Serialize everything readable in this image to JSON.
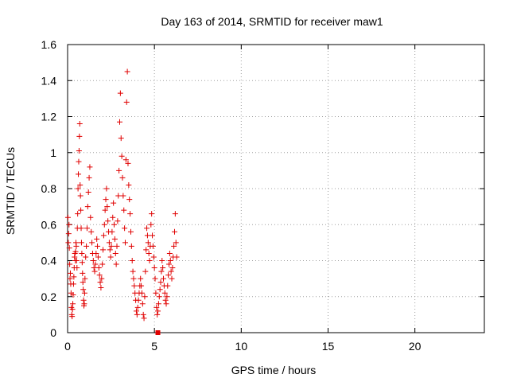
{
  "chart_data": {
    "type": "scatter",
    "title": "Day 163 of 2014, SRMTID for receiver maw1",
    "xlabel": "GPS time / hours",
    "ylabel": "SRMTID / TECUs",
    "xlim": [
      0,
      24
    ],
    "ylim": [
      0,
      1.6
    ],
    "xticks": [
      0,
      5,
      10,
      15,
      20
    ],
    "yticks": [
      0,
      0.2,
      0.4,
      0.6,
      0.8,
      1.0,
      1.2,
      1.4,
      1.6
    ],
    "xtick_labels": [
      "0",
      "5",
      "10",
      "15",
      "20"
    ],
    "ytick_labels": [
      "0",
      "0.2",
      "0.4",
      "0.6",
      "0.8",
      "1",
      "1.2",
      "1.4",
      "1.6"
    ],
    "grid": true,
    "marker_color": "#e00000",
    "special_marker": {
      "x": 5.2,
      "y": 0.0,
      "shape": "square"
    },
    "series": [
      {
        "name": "SRMTID",
        "marker": "+",
        "points": [
          [
            0.02,
            0.64
          ],
          [
            0.04,
            0.5
          ],
          [
            0.06,
            0.55
          ],
          [
            0.08,
            0.6
          ],
          [
            0.1,
            0.47
          ],
          [
            0.12,
            0.38
          ],
          [
            0.14,
            0.3
          ],
          [
            0.16,
            0.33
          ],
          [
            0.18,
            0.27
          ],
          [
            0.2,
            0.22
          ],
          [
            0.22,
            0.14
          ],
          [
            0.24,
            0.1
          ],
          [
            0.26,
            0.09
          ],
          [
            0.28,
            0.13
          ],
          [
            0.3,
            0.16
          ],
          [
            0.32,
            0.21
          ],
          [
            0.34,
            0.27
          ],
          [
            0.36,
            0.31
          ],
          [
            0.38,
            0.36
          ],
          [
            0.4,
            0.42
          ],
          [
            0.42,
            0.44
          ],
          [
            0.44,
            0.4
          ],
          [
            0.46,
            0.45
          ],
          [
            0.48,
            0.5
          ],
          [
            0.5,
            0.48
          ],
          [
            0.52,
            0.4
          ],
          [
            0.54,
            0.36
          ],
          [
            0.56,
            0.58
          ],
          [
            0.58,
            0.66
          ],
          [
            0.6,
            0.8
          ],
          [
            0.62,
            0.88
          ],
          [
            0.64,
            0.95
          ],
          [
            0.66,
            1.01
          ],
          [
            0.68,
            1.09
          ],
          [
            0.7,
            1.16
          ],
          [
            0.72,
            0.82
          ],
          [
            0.74,
            0.76
          ],
          [
            0.76,
            0.68
          ],
          [
            0.78,
            0.58
          ],
          [
            0.8,
            0.5
          ],
          [
            0.82,
            0.44
          ],
          [
            0.84,
            0.39
          ],
          [
            0.86,
            0.33
          ],
          [
            0.88,
            0.28
          ],
          [
            0.9,
            0.24
          ],
          [
            0.92,
            0.18
          ],
          [
            0.94,
            0.15
          ],
          [
            0.96,
            0.16
          ],
          [
            0.98,
            0.22
          ],
          [
            1.0,
            0.3
          ],
          [
            1.04,
            0.42
          ],
          [
            1.08,
            0.48
          ],
          [
            1.12,
            0.58
          ],
          [
            1.16,
            0.7
          ],
          [
            1.2,
            0.78
          ],
          [
            1.24,
            0.86
          ],
          [
            1.28,
            0.92
          ],
          [
            1.32,
            0.64
          ],
          [
            1.36,
            0.56
          ],
          [
            1.4,
            0.5
          ],
          [
            1.44,
            0.44
          ],
          [
            1.48,
            0.4
          ],
          [
            1.52,
            0.36
          ],
          [
            1.56,
            0.34
          ],
          [
            1.6,
            0.38
          ],
          [
            1.64,
            0.44
          ],
          [
            1.68,
            0.52
          ],
          [
            1.72,
            0.48
          ],
          [
            1.76,
            0.42
          ],
          [
            1.8,
            0.36
          ],
          [
            1.84,
            0.32
          ],
          [
            1.88,
            0.28
          ],
          [
            1.92,
            0.25
          ],
          [
            1.96,
            0.3
          ],
          [
            2.0,
            0.38
          ],
          [
            2.04,
            0.46
          ],
          [
            2.08,
            0.54
          ],
          [
            2.12,
            0.6
          ],
          [
            2.16,
            0.68
          ],
          [
            2.2,
            0.74
          ],
          [
            2.24,
            0.8
          ],
          [
            2.28,
            0.7
          ],
          [
            2.32,
            0.62
          ],
          [
            2.36,
            0.56
          ],
          [
            2.4,
            0.5
          ],
          [
            2.44,
            0.46
          ],
          [
            2.48,
            0.42
          ],
          [
            2.52,
            0.48
          ],
          [
            2.56,
            0.56
          ],
          [
            2.6,
            0.64
          ],
          [
            2.64,
            0.72
          ],
          [
            2.68,
            0.6
          ],
          [
            2.72,
            0.52
          ],
          [
            2.76,
            0.44
          ],
          [
            2.8,
            0.38
          ],
          [
            2.84,
            0.48
          ],
          [
            2.88,
            0.62
          ],
          [
            2.92,
            0.76
          ],
          [
            2.96,
            0.9
          ],
          [
            3.0,
            1.17
          ],
          [
            3.04,
            1.33
          ],
          [
            3.08,
            1.08
          ],
          [
            3.12,
            0.98
          ],
          [
            3.16,
            0.86
          ],
          [
            3.2,
            0.76
          ],
          [
            3.24,
            0.68
          ],
          [
            3.28,
            0.58
          ],
          [
            3.32,
            0.5
          ],
          [
            3.36,
            0.96
          ],
          [
            3.4,
            1.28
          ],
          [
            3.44,
            1.45
          ],
          [
            3.48,
            0.94
          ],
          [
            3.52,
            0.82
          ],
          [
            3.56,
            0.74
          ],
          [
            3.6,
            0.66
          ],
          [
            3.64,
            0.56
          ],
          [
            3.68,
            0.48
          ],
          [
            3.72,
            0.4
          ],
          [
            3.76,
            0.34
          ],
          [
            3.8,
            0.3
          ],
          [
            3.84,
            0.26
          ],
          [
            3.88,
            0.22
          ],
          [
            3.92,
            0.18
          ],
          [
            3.96,
            0.12
          ],
          [
            4.0,
            0.1
          ],
          [
            4.04,
            0.14
          ],
          [
            4.08,
            0.18
          ],
          [
            4.12,
            0.22
          ],
          [
            4.16,
            0.26
          ],
          [
            4.2,
            0.3
          ],
          [
            4.24,
            0.26
          ],
          [
            4.28,
            0.22
          ],
          [
            4.32,
            0.16
          ],
          [
            4.36,
            0.1
          ],
          [
            4.4,
            0.08
          ],
          [
            4.44,
            0.2
          ],
          [
            4.48,
            0.34
          ],
          [
            4.52,
            0.46
          ],
          [
            4.56,
            0.58
          ],
          [
            4.6,
            0.54
          ],
          [
            4.64,
            0.5
          ],
          [
            4.68,
            0.44
          ],
          [
            4.72,
            0.4
          ],
          [
            4.76,
            0.48
          ],
          [
            4.8,
            0.6
          ],
          [
            4.84,
            0.66
          ],
          [
            4.88,
            0.54
          ],
          [
            4.92,
            0.48
          ],
          [
            4.96,
            0.42
          ],
          [
            5.0,
            0.36
          ],
          [
            5.04,
            0.3
          ],
          [
            5.08,
            0.22
          ],
          [
            5.12,
            0.14
          ],
          [
            5.16,
            0.1
          ],
          [
            5.2,
            0.12
          ],
          [
            5.24,
            0.16
          ],
          [
            5.28,
            0.2
          ],
          [
            5.32,
            0.24
          ],
          [
            5.36,
            0.28
          ],
          [
            5.4,
            0.34
          ],
          [
            5.44,
            0.4
          ],
          [
            5.48,
            0.36
          ],
          [
            5.52,
            0.3
          ],
          [
            5.56,
            0.26
          ],
          [
            5.6,
            0.22
          ],
          [
            5.64,
            0.18
          ],
          [
            5.68,
            0.16
          ],
          [
            5.72,
            0.2
          ],
          [
            5.76,
            0.26
          ],
          [
            5.8,
            0.32
          ],
          [
            5.84,
            0.38
          ],
          [
            5.88,
            0.44
          ],
          [
            5.92,
            0.4
          ],
          [
            5.96,
            0.34
          ],
          [
            6.0,
            0.3
          ],
          [
            6.04,
            0.36
          ],
          [
            6.08,
            0.42
          ],
          [
            6.12,
            0.48
          ],
          [
            6.16,
            0.56
          ],
          [
            6.2,
            0.66
          ],
          [
            6.24,
            0.5
          ],
          [
            6.28,
            0.42
          ]
        ]
      }
    ]
  }
}
